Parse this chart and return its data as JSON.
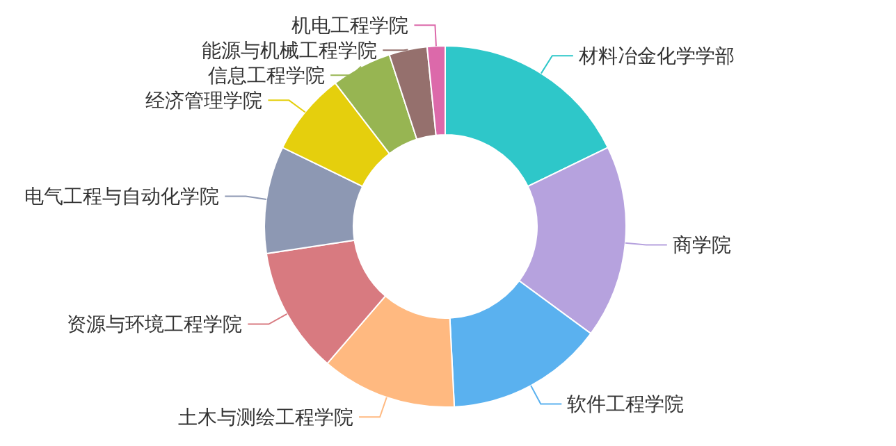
{
  "chart_data": {
    "type": "donut",
    "categories": [
      "材料冶金化学学部",
      "商学院",
      "软件工程学院",
      "土木与测绘工程学院",
      "资源与环境工程学院",
      "电气工程与自动化学院",
      "经济管理学院",
      "信息工程学院",
      "能源与机械工程学院",
      "机电工程学院"
    ],
    "values": [
      17.8,
      17.3,
      14.1,
      12.1,
      11.3,
      9.6,
      7.4,
      5.4,
      3.4,
      1.6
    ],
    "colors": [
      "#2ec7c9",
      "#b6a2de",
      "#5ab1ef",
      "#ffb980",
      "#d87a80",
      "#8d98b3",
      "#e5cf0d",
      "#97b552",
      "#95706d",
      "#dc69aa"
    ]
  }
}
